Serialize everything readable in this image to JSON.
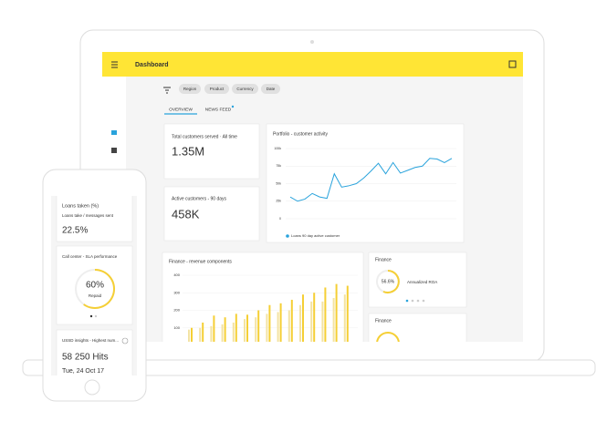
{
  "header": {
    "title": "Dashboard"
  },
  "filters": [
    "Region",
    "Product",
    "Currency",
    "Date"
  ],
  "tabs": [
    "OVERVIEW",
    "NEWS FEED"
  ],
  "cards": {
    "total_customers": {
      "label": "Total customers served · All time",
      "value": "1.35M"
    },
    "active_customers": {
      "label": "Active customers - 90 days",
      "value": "458K"
    },
    "finance_roa": {
      "title": "Finance",
      "value": "56.6%",
      "label": "Annualized ROA"
    },
    "finance_second": {
      "title": "Finance"
    }
  },
  "line_chart": {
    "type": "line",
    "title": "Portfolio - customer activity",
    "ylim": [
      0,
      100000
    ],
    "yticks": [
      {
        "value": 100000,
        "label": "100k"
      },
      {
        "value": 75000,
        "label": "75k"
      },
      {
        "value": 50000,
        "label": "50k"
      },
      {
        "value": 25000,
        "label": "25k"
      },
      0
    ],
    "series": [
      {
        "name": "Loans 90 day active customer",
        "color": "#29a3dc",
        "values": [
          31000,
          25000,
          28000,
          36000,
          31000,
          29000,
          64000,
          45000,
          47000,
          50000,
          58000,
          68000,
          79000,
          64000,
          80000,
          65000,
          69000,
          73000,
          75000,
          86000,
          85000,
          80000,
          86000
        ]
      }
    ]
  },
  "bar_chart": {
    "type": "bar",
    "title": "Finance - revenue components",
    "ylim": [
      0,
      400
    ],
    "yticks": [
      100,
      200,
      300,
      400
    ],
    "series": [
      {
        "color": "#f3e3a3",
        "values": [
          90,
          100,
          110,
          120,
          130,
          150,
          160,
          180,
          190,
          200,
          230,
          250,
          250,
          270,
          290
        ]
      },
      {
        "color": "#f5cf35",
        "values": [
          100,
          130,
          170,
          160,
          180,
          175,
          200,
          230,
          240,
          260,
          290,
          300,
          330,
          350,
          340
        ]
      }
    ]
  },
  "phone": {
    "loans": {
      "title": "Loans taken (%)",
      "label": "Loans take / messages sent",
      "value": "22.5%"
    },
    "call_center": {
      "title": "Call center - SLA performance",
      "value": "60%",
      "label": "Repaid"
    },
    "ussd": {
      "title": "USSD insights - Highest num...",
      "value": "58 250 Hits",
      "date": "Tue, 24 Oct 17"
    }
  }
}
